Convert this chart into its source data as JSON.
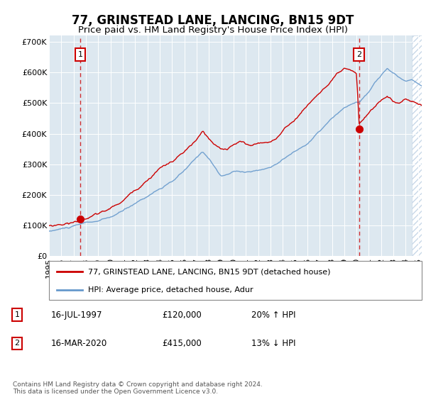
{
  "title": "77, GRINSTEAD LANE, LANCING, BN15 9DT",
  "subtitle": "Price paid vs. HM Land Registry's House Price Index (HPI)",
  "ylim": [
    0,
    720000
  ],
  "yticks": [
    0,
    100000,
    200000,
    300000,
    400000,
    500000,
    600000,
    700000
  ],
  "ytick_labels": [
    "£0",
    "£100K",
    "£200K",
    "£300K",
    "£400K",
    "£500K",
    "£600K",
    "£700K"
  ],
  "xlim_start": 1995.0,
  "xlim_end": 2025.3,
  "sale1_x": 1997.54,
  "sale1_y": 120000,
  "sale2_x": 2020.21,
  "sale2_y": 415000,
  "hpi_color": "#6699cc",
  "price_color": "#cc0000",
  "bg_color": "#dde8f0",
  "legend1": "77, GRINSTEAD LANE, LANCING, BN15 9DT (detached house)",
  "legend2": "HPI: Average price, detached house, Adur",
  "annotation1_label": "1",
  "annotation1_date": "16-JUL-1997",
  "annotation1_price": "£120,000",
  "annotation1_hpi": "20% ↑ HPI",
  "annotation2_label": "2",
  "annotation2_date": "16-MAR-2020",
  "annotation2_price": "£415,000",
  "annotation2_hpi": "13% ↓ HPI",
  "footer": "Contains HM Land Registry data © Crown copyright and database right 2024.\nThis data is licensed under the Open Government Licence v3.0.",
  "title_fontsize": 12,
  "subtitle_fontsize": 9.5,
  "tick_fontsize": 8,
  "hatch_start": 2024.5
}
